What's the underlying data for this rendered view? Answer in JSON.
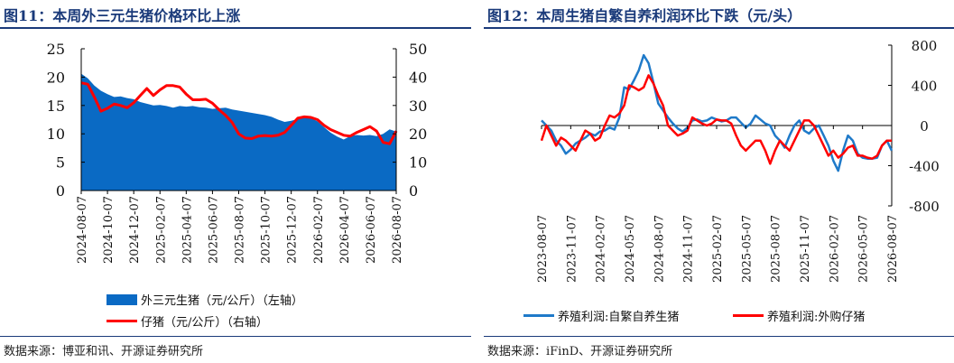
{
  "panels": [
    {
      "title": "图11：本周外三元生猪价格环比上涨",
      "source": "数据来源：博亚和讯、开源证券研究所",
      "legend": [
        "外三元生猪（元/公斤）（左轴）",
        "仔猪（元/公斤）（右轴）"
      ]
    },
    {
      "title": "图12：本周生猪自繁自养利润环比下跌（元/头）",
      "source": "数据来源：iFinD、开源证券研究所",
      "legend": [
        "养殖利润:自繁自养生猪",
        "养殖利润:外购仔猪"
      ]
    }
  ],
  "chart_data": [
    {
      "type": "area",
      "title": "",
      "x_tick_labels": [
        "2024-08-07",
        "2024-10-07",
        "2024-12-07",
        "2025-02-07",
        "2025-04-07",
        "2025-06-07",
        "2025-08-07",
        "2025-10-07",
        "2025-12-07",
        "2026-02-07",
        "2026-04-07",
        "2026-06-07",
        "2026-08-07"
      ],
      "left_axis": {
        "ylim": [
          0,
          25
        ],
        "ticks": [
          0,
          5,
          10,
          15,
          20,
          25
        ]
      },
      "right_axis": {
        "ylim": [
          0,
          50
        ],
        "ticks": [
          0,
          10,
          20,
          30,
          40,
          50
        ]
      },
      "colors": {
        "area": "#0a6ac4",
        "line": "#ff0000"
      },
      "x_months_since_2024_08": [
        0,
        0.5,
        1,
        1.5,
        2,
        2.5,
        3,
        3.5,
        4,
        4.5,
        5,
        5.5,
        6,
        6.5,
        7,
        7.5,
        8,
        8.5,
        9,
        9.5,
        10,
        10.5,
        11,
        11.5,
        12,
        12.5,
        13,
        13.5,
        14,
        14.5,
        15,
        15.5,
        16,
        16.5,
        17,
        17.5,
        18,
        18.5,
        19,
        19.5,
        20,
        20.5,
        21,
        21.5,
        22,
        22.5,
        23,
        23.5,
        24
      ],
      "series": [
        {
          "name": "外三元生猪（元/公斤）（左轴）",
          "axis": "left",
          "kind": "area",
          "values": [
            20.6,
            19.8,
            18.5,
            17.6,
            17.0,
            16.5,
            16.6,
            16.3,
            16.1,
            15.6,
            15.3,
            15.0,
            15.1,
            14.9,
            14.6,
            14.9,
            14.8,
            14.9,
            14.7,
            14.6,
            14.4,
            14.5,
            14.6,
            14.3,
            14.1,
            13.9,
            13.7,
            13.5,
            13.3,
            13.0,
            12.5,
            12.1,
            12.3,
            12.6,
            12.8,
            12.8,
            12.2,
            11.2,
            10.2,
            9.5,
            9.0,
            9.6,
            9.8,
            9.7,
            9.8,
            9.6,
            10.0,
            10.8,
            10.4
          ]
        },
        {
          "name": "仔猪（元/公斤）（右轴）",
          "axis": "right",
          "kind": "line",
          "values": [
            38,
            37.5,
            33,
            28,
            29,
            30.5,
            30,
            29.2,
            31,
            33.5,
            36,
            33.5,
            35.5,
            37,
            37,
            36.5,
            34,
            32,
            32,
            32.2,
            30.8,
            28.5,
            26.5,
            24,
            20,
            18.5,
            18.3,
            19.2,
            19.4,
            19.2,
            19.5,
            20.5,
            23,
            25.5,
            26,
            25.8,
            25,
            23,
            21.5,
            20.5,
            19.5,
            19.2,
            20.5,
            21.5,
            22.5,
            21,
            17,
            16.5,
            21
          ]
        }
      ]
    },
    {
      "type": "line",
      "title": "",
      "x_tick_labels": [
        "2023-08-07",
        "2023-11-07",
        "2024-02-07",
        "2024-05-07",
        "2024-08-07",
        "2024-11-07",
        "2025-02-07",
        "2025-05-07",
        "2025-08-07",
        "2025-11-07",
        "2026-02-07",
        "2026-05-07",
        "2026-08-07"
      ],
      "ylim": [
        -800,
        800
      ],
      "y_ticks": [
        800,
        400,
        0,
        -400,
        -800
      ],
      "colors": {
        "自繁自养": "#1f7ac9",
        "外购仔猪": "#ff0000"
      },
      "x_months_since_2023_08": [
        0,
        0.5,
        1,
        1.5,
        2,
        2.5,
        3,
        3.5,
        4,
        4.5,
        5,
        5.5,
        6,
        6.5,
        7,
        7.5,
        8,
        8.5,
        9,
        9.5,
        10,
        10.5,
        11,
        11.5,
        12,
        12.5,
        13,
        13.5,
        14,
        14.5,
        15,
        15.5,
        16,
        16.5,
        17,
        17.5,
        18,
        18.5,
        19,
        19.5,
        20,
        20.5,
        21,
        21.5,
        22,
        22.5,
        23,
        23.5,
        24,
        24.5,
        25,
        25.5,
        26,
        26.5,
        27,
        27.5,
        28,
        28.5,
        29,
        29.5,
        30,
        30.5,
        31,
        31.5,
        32,
        32.5,
        33,
        33.5,
        34,
        34.5,
        35,
        35.5,
        36
      ],
      "series": [
        {
          "name": "养殖利润:自繁自养生猪",
          "values": [
            50,
            0,
            -50,
            -150,
            -200,
            -280,
            -240,
            -180,
            -150,
            -120,
            -80,
            -100,
            -60,
            -50,
            -20,
            -40,
            80,
            380,
            360,
            450,
            550,
            700,
            620,
            430,
            220,
            150,
            80,
            20,
            -30,
            -60,
            -20,
            50,
            60,
            40,
            50,
            80,
            60,
            40,
            50,
            80,
            80,
            30,
            -20,
            20,
            100,
            60,
            20,
            0,
            -100,
            -150,
            -220,
            -100,
            0,
            50,
            -50,
            -80,
            -30,
            0,
            -100,
            -200,
            -350,
            -450,
            -250,
            -100,
            -150,
            -280,
            -320,
            -330,
            -330,
            -320,
            -200,
            -150,
            -250
          ]
        },
        {
          "name": "养殖利润:外购仔猪",
          "values": [
            -150,
            0,
            -100,
            -200,
            -120,
            -150,
            -200,
            -250,
            -150,
            -50,
            -80,
            -150,
            -120,
            0,
            100,
            80,
            120,
            200,
            400,
            380,
            350,
            380,
            500,
            420,
            300,
            200,
            0,
            -50,
            -100,
            -80,
            -50,
            80,
            50,
            20,
            0,
            20,
            60,
            50,
            50,
            20,
            -100,
            -200,
            -250,
            -200,
            -150,
            -150,
            -250,
            -380,
            -250,
            -150,
            -200,
            -250,
            -150,
            -50,
            50,
            50,
            0,
            -100,
            -200,
            -300,
            -250,
            -320,
            -280,
            -220,
            -200,
            -300,
            -300,
            -320,
            -330,
            -300,
            -200,
            -150,
            -150
          ]
        }
      ]
    }
  ]
}
